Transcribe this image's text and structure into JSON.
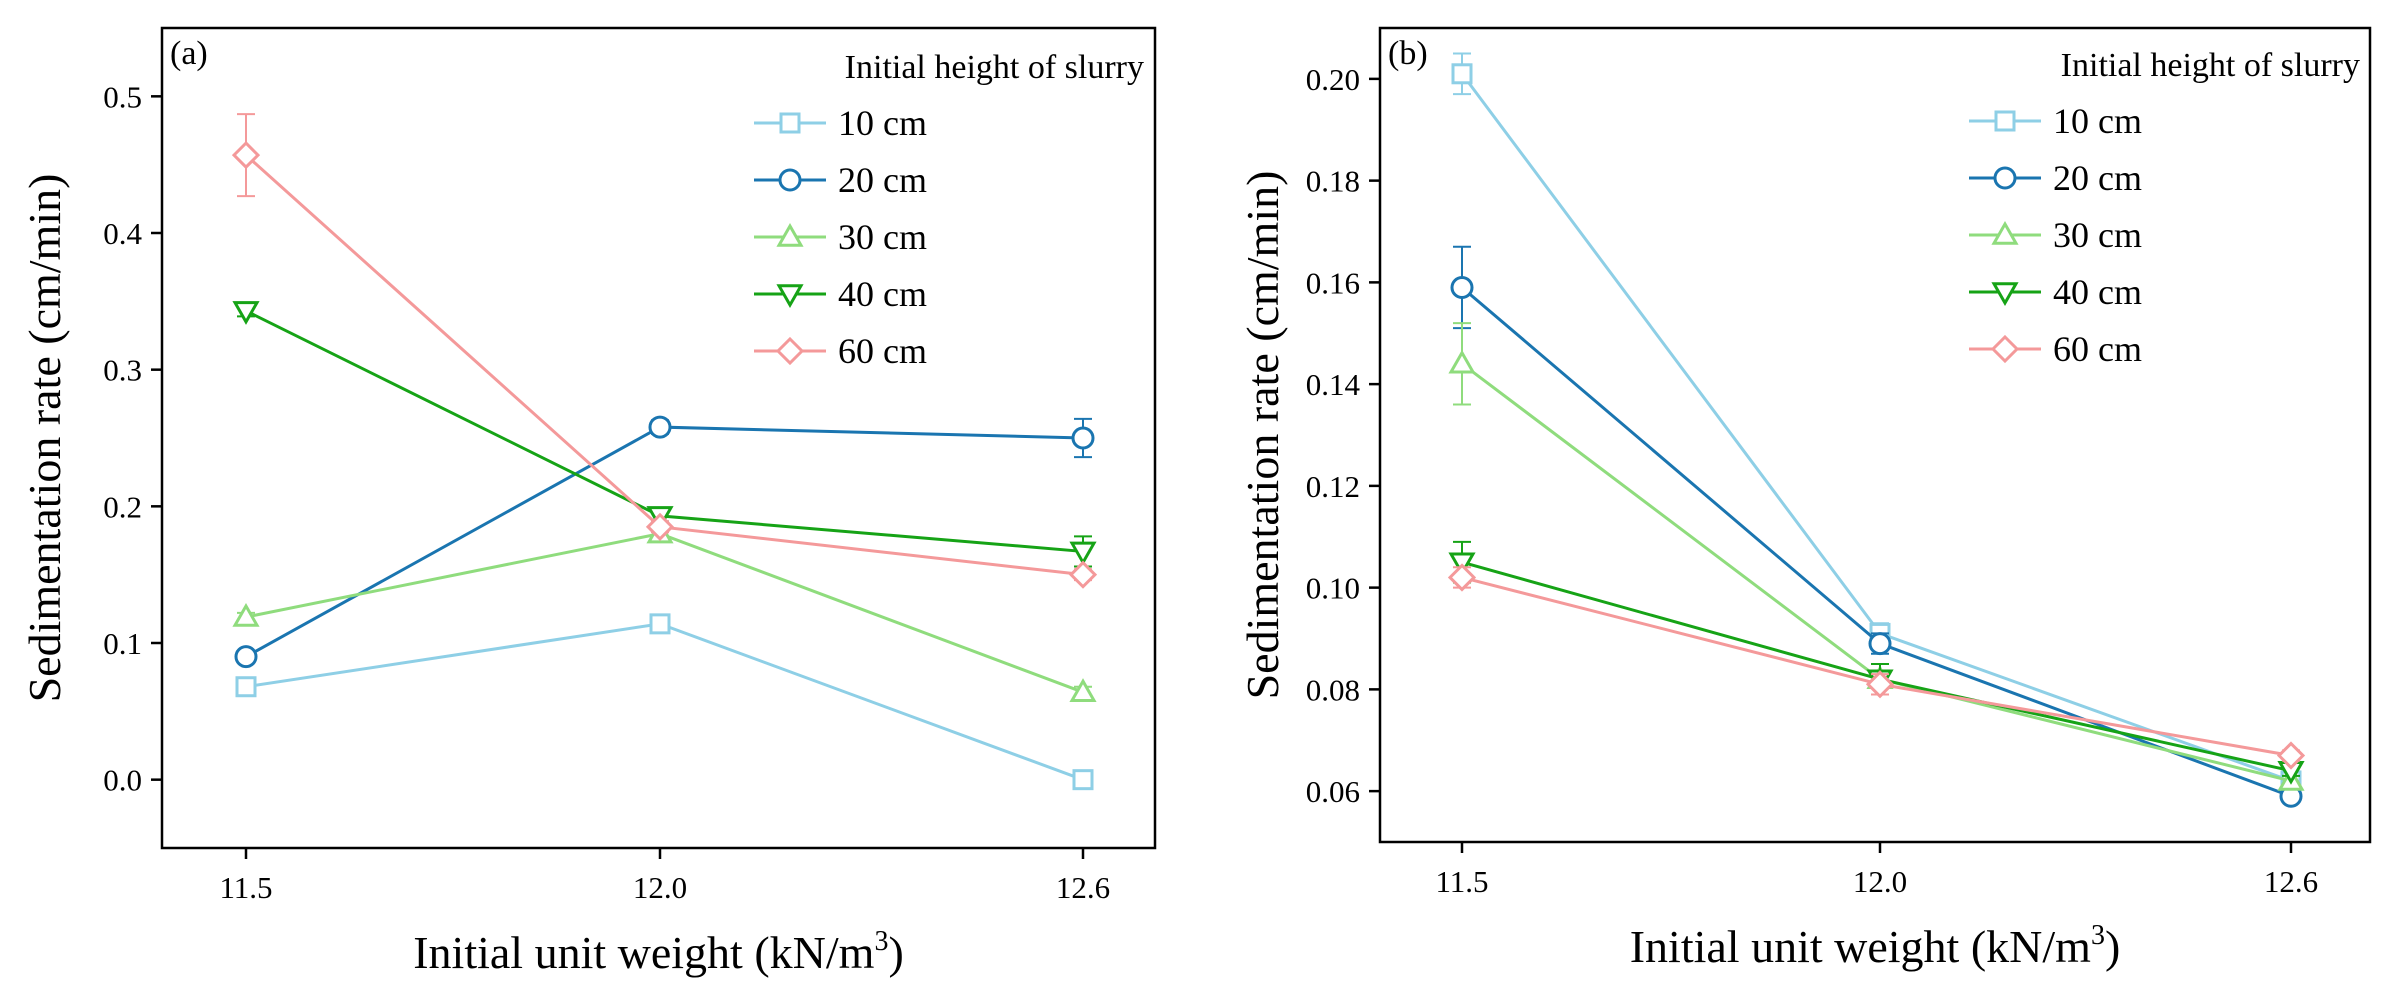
{
  "chart_data": [
    {
      "type": "line",
      "panel_label": "(a)",
      "categories": [
        "11.5",
        "12.0",
        "12.6"
      ],
      "xlabel": "Initial unit weight (kN/m",
      "xlabel_sup": "3",
      "xlabel_end": ")",
      "ylabel": "Sedimentation rate (cm/min)",
      "ylim": [
        -0.05,
        0.55
      ],
      "yticks": [
        "0.0",
        "0.1",
        "0.2",
        "0.3",
        "0.4",
        "0.5"
      ],
      "ytick_values": [
        0.0,
        0.1,
        0.2,
        0.3,
        0.4,
        0.5
      ],
      "legend_title": "Initial height of slurry",
      "legend_position": "top-right",
      "series": [
        {
          "name": "10 cm",
          "marker": "square",
          "color": "#8ECFE6",
          "values": [
            0.068,
            0.114,
            0.0
          ],
          "errors": [
            0.004,
            0.004,
            0.003
          ]
        },
        {
          "name": "20 cm",
          "marker": "circle",
          "color": "#1A75B0",
          "values": [
            0.09,
            0.258,
            0.25
          ],
          "errors": [
            0.004,
            0.005,
            0.014
          ]
        },
        {
          "name": "30 cm",
          "marker": "triangle-up",
          "color": "#8FDC7D",
          "values": [
            0.119,
            0.18,
            0.064
          ],
          "errors": [
            0.003,
            0.004,
            0.004
          ]
        },
        {
          "name": "40 cm",
          "marker": "triangle-down",
          "color": "#16A316",
          "values": [
            0.343,
            0.193,
            0.167
          ],
          "errors": [
            0.004,
            0.004,
            0.011
          ]
        },
        {
          "name": "60 cm",
          "marker": "diamond",
          "color": "#F4999A",
          "values": [
            0.457,
            0.185,
            0.15
          ],
          "errors": [
            0.03,
            0.004,
            0.004
          ]
        }
      ]
    },
    {
      "type": "line",
      "panel_label": "(b)",
      "categories": [
        "11.5",
        "12.0",
        "12.6"
      ],
      "xlabel": "Initial unit weight (kN/m",
      "xlabel_sup": "3",
      "xlabel_end": ")",
      "ylabel": "Sedimentation rate (cm/min)",
      "ylim": [
        0.05,
        0.21
      ],
      "yticks": [
        "0.06",
        "0.08",
        "0.10",
        "0.12",
        "0.14",
        "0.16",
        "0.18",
        "0.20"
      ],
      "ytick_values": [
        0.06,
        0.08,
        0.1,
        0.12,
        0.14,
        0.16,
        0.18,
        0.2
      ],
      "legend_title": "Initial height of slurry",
      "legend_position": "top-right",
      "series": [
        {
          "name": "10 cm",
          "marker": "square",
          "color": "#8ECFE6",
          "values": [
            0.201,
            0.091,
            0.062
          ],
          "errors": [
            0.004,
            0.002,
            0.001
          ]
        },
        {
          "name": "20 cm",
          "marker": "circle",
          "color": "#1A75B0",
          "values": [
            0.159,
            0.089,
            0.059
          ],
          "errors": [
            0.008,
            0.002,
            0.001
          ]
        },
        {
          "name": "30 cm",
          "marker": "triangle-up",
          "color": "#8FDC7D",
          "values": [
            0.144,
            0.082,
            0.062
          ],
          "errors": [
            0.008,
            0.003,
            0.001
          ]
        },
        {
          "name": "40 cm",
          "marker": "triangle-down",
          "color": "#16A316",
          "values": [
            0.105,
            0.082,
            0.064
          ],
          "errors": [
            0.004,
            0.003,
            0.001
          ]
        },
        {
          "name": "60 cm",
          "marker": "diamond",
          "color": "#F4999A",
          "values": [
            0.102,
            0.081,
            0.067
          ],
          "errors": [
            0.002,
            0.002,
            0.001
          ]
        }
      ]
    }
  ]
}
